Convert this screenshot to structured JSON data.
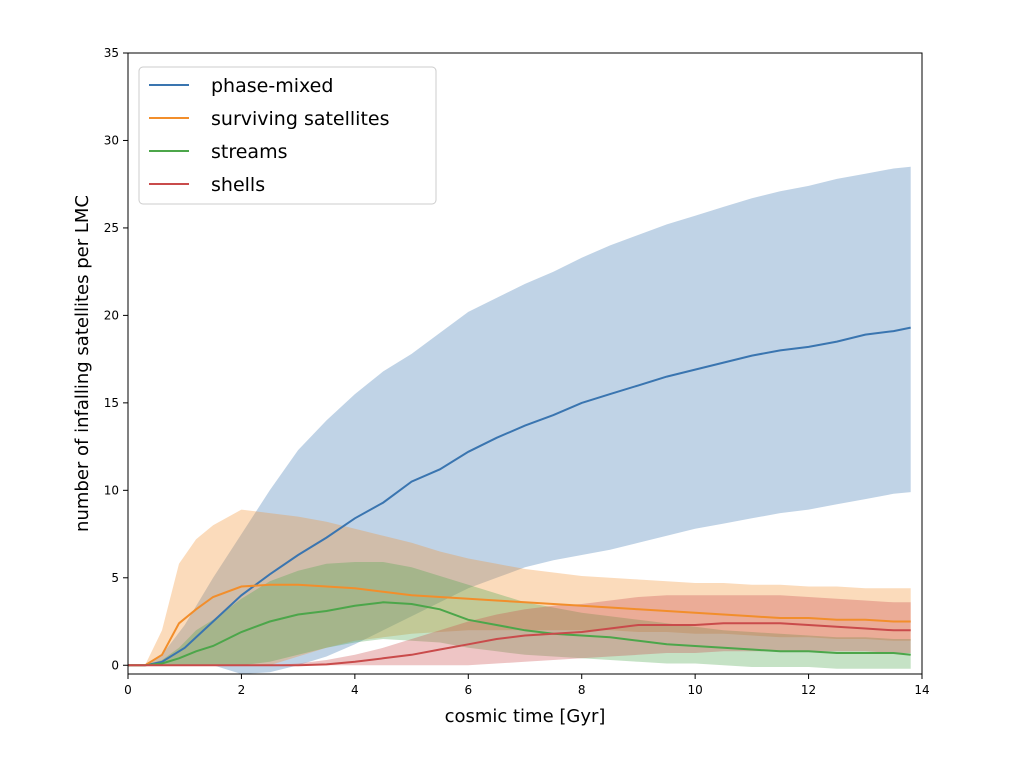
{
  "chart_data": {
    "type": "line",
    "xlabel": "cosmic time [Gyr]",
    "ylabel": "number of infalling satellites per LMC",
    "xlim": [
      0,
      14
    ],
    "ylim": [
      -0.5,
      35
    ],
    "xticks": [
      0,
      2,
      4,
      6,
      8,
      10,
      12,
      14
    ],
    "yticks": [
      0,
      5,
      10,
      15,
      20,
      25,
      30,
      35
    ],
    "grid": false,
    "legend_position": "top-left",
    "series": [
      {
        "name": "phase-mixed",
        "color": "#3a75b0",
        "x": [
          0,
          0.3,
          0.6,
          1.0,
          1.5,
          2.0,
          2.5,
          3.0,
          3.5,
          4.0,
          4.5,
          5.0,
          5.5,
          6.0,
          6.5,
          7.0,
          7.5,
          8.0,
          8.5,
          9.0,
          9.5,
          10.0,
          10.5,
          11.0,
          11.5,
          12.0,
          12.5,
          13.0,
          13.5,
          13.8
        ],
        "y": [
          0,
          0,
          0.2,
          1.0,
          2.5,
          4.0,
          5.2,
          6.3,
          7.3,
          8.4,
          9.3,
          10.5,
          11.2,
          12.2,
          13.0,
          13.7,
          14.3,
          15.0,
          15.5,
          16.0,
          16.5,
          16.9,
          17.3,
          17.7,
          18.0,
          18.2,
          18.5,
          18.9,
          19.1,
          19.3
        ],
        "lower": [
          0,
          0,
          0,
          0,
          0,
          -0.5,
          -0.4,
          0,
          0.5,
          1.2,
          2.0,
          2.8,
          3.6,
          4.4,
          5.0,
          5.6,
          6.0,
          6.3,
          6.6,
          7.0,
          7.4,
          7.8,
          8.1,
          8.4,
          8.7,
          8.9,
          9.2,
          9.5,
          9.8,
          9.9
        ],
        "upper": [
          0,
          0,
          0.6,
          2.3,
          5.0,
          7.5,
          10.0,
          12.3,
          14.0,
          15.5,
          16.8,
          17.8,
          19.0,
          20.2,
          21.0,
          21.8,
          22.5,
          23.3,
          24.0,
          24.6,
          25.2,
          25.7,
          26.2,
          26.7,
          27.1,
          27.4,
          27.8,
          28.1,
          28.4,
          28.5
        ]
      },
      {
        "name": "surviving satellites",
        "color": "#f28e2b",
        "x": [
          0,
          0.3,
          0.6,
          0.9,
          1.2,
          1.5,
          2.0,
          2.5,
          3.0,
          3.5,
          4.0,
          4.5,
          5.0,
          5.5,
          6.0,
          6.5,
          7.0,
          7.5,
          8.0,
          8.5,
          9.0,
          9.5,
          10.0,
          10.5,
          11.0,
          11.5,
          12.0,
          12.5,
          13.0,
          13.5,
          13.8
        ],
        "y": [
          0,
          0,
          0.6,
          2.4,
          3.2,
          3.9,
          4.5,
          4.6,
          4.6,
          4.5,
          4.4,
          4.2,
          4.0,
          3.9,
          3.8,
          3.7,
          3.6,
          3.5,
          3.4,
          3.3,
          3.2,
          3.1,
          3.0,
          2.9,
          2.8,
          2.7,
          2.7,
          2.6,
          2.6,
          2.5,
          2.5
        ],
        "lower": [
          0,
          0,
          0,
          0,
          0,
          0,
          0,
          0,
          0.5,
          1.0,
          1.4,
          1.6,
          1.8,
          1.9,
          2.0,
          2.0,
          2.0,
          2.0,
          2.0,
          2.0,
          1.9,
          1.9,
          1.8,
          1.8,
          1.7,
          1.6,
          1.6,
          1.5,
          1.5,
          1.4,
          1.4
        ],
        "upper": [
          0,
          0,
          2.0,
          5.8,
          7.2,
          8.0,
          8.9,
          8.7,
          8.5,
          8.2,
          7.8,
          7.4,
          7.0,
          6.5,
          6.1,
          5.8,
          5.5,
          5.3,
          5.1,
          5.0,
          4.9,
          4.8,
          4.7,
          4.7,
          4.6,
          4.6,
          4.5,
          4.5,
          4.4,
          4.4,
          4.4
        ]
      },
      {
        "name": "streams",
        "color": "#4ca64a",
        "x": [
          0,
          0.3,
          0.6,
          0.9,
          1.2,
          1.5,
          2.0,
          2.5,
          3.0,
          3.5,
          4.0,
          4.5,
          5.0,
          5.5,
          6.0,
          6.5,
          7.0,
          7.5,
          8.0,
          8.5,
          9.0,
          9.5,
          10.0,
          10.5,
          11.0,
          11.5,
          12.0,
          12.5,
          13.0,
          13.5,
          13.8
        ],
        "y": [
          0,
          0,
          0.1,
          0.4,
          0.8,
          1.1,
          1.9,
          2.5,
          2.9,
          3.1,
          3.4,
          3.6,
          3.5,
          3.2,
          2.6,
          2.3,
          2.0,
          1.8,
          1.7,
          1.6,
          1.4,
          1.2,
          1.1,
          1.0,
          0.9,
          0.8,
          0.8,
          0.7,
          0.7,
          0.7,
          0.6
        ],
        "lower": [
          0,
          0,
          0,
          0,
          0,
          0,
          0,
          0.2,
          0.6,
          1.0,
          1.3,
          1.5,
          1.4,
          1.3,
          1.0,
          0.8,
          0.6,
          0.5,
          0.4,
          0.3,
          0.2,
          0.1,
          0.1,
          0.0,
          -0.1,
          -0.1,
          -0.1,
          -0.2,
          -0.2,
          -0.2,
          -0.2
        ],
        "upper": [
          0,
          0,
          0.3,
          1.0,
          2.0,
          2.6,
          3.8,
          4.8,
          5.4,
          5.8,
          5.9,
          5.9,
          5.6,
          5.1,
          4.6,
          4.1,
          3.6,
          3.3,
          3.0,
          2.8,
          2.6,
          2.4,
          2.2,
          2.0,
          1.9,
          1.8,
          1.7,
          1.6,
          1.6,
          1.5,
          1.5
        ]
      },
      {
        "name": "shells",
        "color": "#c94b4b",
        "x": [
          0,
          0.5,
          1.0,
          1.5,
          2.0,
          2.5,
          3.0,
          3.5,
          4.0,
          4.5,
          5.0,
          5.5,
          6.0,
          6.5,
          7.0,
          7.5,
          8.0,
          8.5,
          9.0,
          9.5,
          10.0,
          10.5,
          11.0,
          11.5,
          12.0,
          12.5,
          13.0,
          13.5,
          13.8
        ],
        "y": [
          0,
          0,
          0,
          0,
          0,
          0,
          0,
          0.05,
          0.2,
          0.4,
          0.6,
          0.9,
          1.2,
          1.5,
          1.7,
          1.8,
          1.9,
          2.1,
          2.3,
          2.3,
          2.3,
          2.4,
          2.4,
          2.4,
          2.3,
          2.2,
          2.1,
          2.0,
          2.0
        ],
        "lower": [
          0,
          0,
          0,
          0,
          0,
          0,
          0,
          0,
          0,
          0,
          0,
          0,
          0,
          0.1,
          0.2,
          0.3,
          0.4,
          0.5,
          0.6,
          0.7,
          0.7,
          0.8,
          0.8,
          0.8,
          0.8,
          0.8,
          0.8,
          0.7,
          0.7
        ],
        "upper": [
          0,
          0,
          0,
          0,
          0,
          0,
          0.1,
          0.3,
          0.6,
          1.0,
          1.5,
          2.0,
          2.5,
          2.9,
          3.2,
          3.4,
          3.5,
          3.7,
          3.9,
          4.0,
          4.0,
          4.0,
          4.0,
          4.0,
          3.9,
          3.8,
          3.7,
          3.6,
          3.6
        ]
      }
    ]
  }
}
